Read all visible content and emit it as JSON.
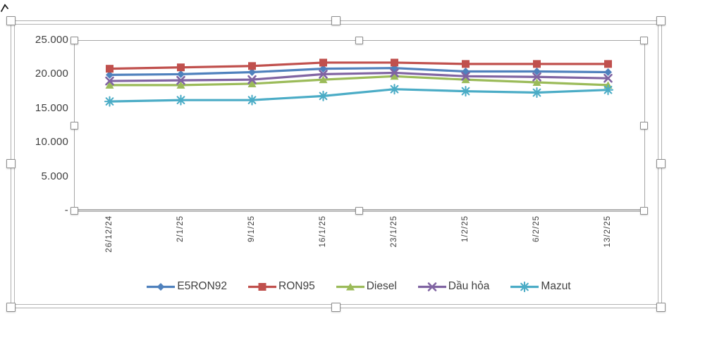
{
  "chart_data": {
    "type": "line",
    "title": "",
    "categories": [
      "26/12/24",
      "2/1/25",
      "9/1/25",
      "16/1/25",
      "23/1/25",
      "1/2/25",
      "6/2/25",
      "13/2/25"
    ],
    "series": [
      {
        "name": "E5RON92",
        "marker": "diamond",
        "color": "#4F81BD",
        "values": [
          19900,
          20000,
          20300,
          20800,
          20900,
          20400,
          20400,
          20300
        ]
      },
      {
        "name": "RON95",
        "marker": "square",
        "color": "#C0504D",
        "values": [
          20800,
          21000,
          21200,
          21700,
          21700,
          21500,
          21500,
          21500
        ]
      },
      {
        "name": "Diesel",
        "marker": "triangle",
        "color": "#9BBB59",
        "values": [
          18400,
          18400,
          18600,
          19200,
          19700,
          19200,
          18800,
          18400
        ]
      },
      {
        "name": "Dầu hỏa",
        "marker": "x",
        "color": "#8064A2",
        "values": [
          19000,
          19100,
          19200,
          20000,
          20200,
          19700,
          19600,
          19400
        ]
      },
      {
        "name": "Mazut",
        "marker": "asterisk",
        "color": "#4BACC6",
        "values": [
          16000,
          16200,
          16200,
          16800,
          17800,
          17500,
          17300,
          17700
        ]
      }
    ],
    "y_axis": {
      "labels": [
        "25.000",
        "20.000",
        "15.000",
        "10.000",
        "5.000",
        "-"
      ],
      "min": 0,
      "max": 25000,
      "step": 5000
    },
    "x_axis": {
      "label_rotation_deg": -90
    },
    "legend_position": "bottom",
    "grid": false
  },
  "ui": {
    "selection": {
      "outer_frame": true,
      "plot_frame": true,
      "handle_fill": "#ffffff",
      "handle_border": "#8e8e8e"
    },
    "colors": {
      "text": "#404040",
      "axis_line": "#8a8a8a",
      "frame_border": "#aeaeae",
      "plot_border": "#a6a6a6",
      "background": "#ffffff"
    }
  }
}
